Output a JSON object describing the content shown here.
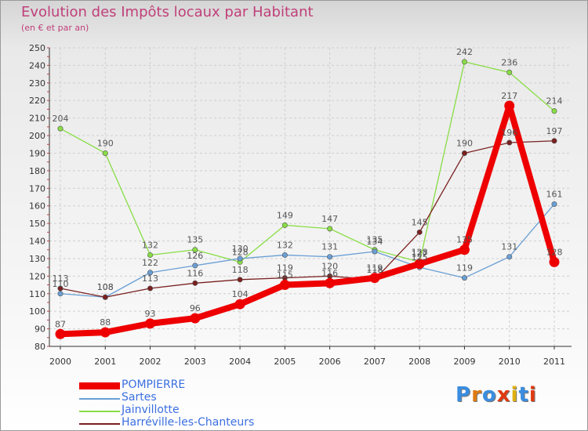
{
  "chart_data": {
    "type": "line",
    "title": "Evolution des Impôts locaux par Habitant",
    "subtitle": "(en € et par an)",
    "xlabel": "",
    "ylabel": "",
    "ylim": [
      80,
      250
    ],
    "yticks": [
      80,
      90,
      100,
      110,
      120,
      130,
      140,
      150,
      160,
      170,
      180,
      190,
      200,
      210,
      220,
      230,
      240,
      250
    ],
    "categories": [
      "2000",
      "2001",
      "2002",
      "2003",
      "2004",
      "2005",
      "2006",
      "2007",
      "2008",
      "2009",
      "2010",
      "2011"
    ],
    "grid": true,
    "series": [
      {
        "name": "POMPIERRE",
        "color": "#ee0000",
        "values": [
          87,
          88,
          93,
          96,
          104,
          115,
          116,
          119,
          127,
          135,
          217,
          128
        ],
        "labels": [
          "87",
          "88",
          "93",
          "96",
          "104",
          "115",
          "116",
          "119",
          "127",
          "135",
          "217",
          "128"
        ]
      },
      {
        "name": "Sartes",
        "color": "#6a9fd4",
        "values": [
          110,
          108,
          122,
          126,
          130,
          132,
          131,
          134,
          125,
          119,
          131,
          161
        ],
        "labels": [
          "110",
          "108",
          "122",
          "126",
          "130",
          "132",
          "131",
          "134",
          "125",
          "119",
          "131",
          "161"
        ]
      },
      {
        "name": "Jainvillotte",
        "color": "#88dd44",
        "values": [
          204,
          190,
          132,
          135,
          128,
          149,
          147,
          135,
          128,
          242,
          236,
          214
        ],
        "labels": [
          "204",
          "190",
          "132",
          "135",
          "128",
          "149",
          "147",
          "135",
          "128",
          "242",
          "236",
          "214"
        ]
      },
      {
        "name": "Harréville-les-Chanteurs",
        "color": "#7a2020",
        "values": [
          113,
          108,
          113,
          116,
          118,
          119,
          120,
          118,
          145,
          190,
          196,
          197
        ],
        "labels": [
          "113",
          "108",
          "113",
          "116",
          "118",
          "119",
          "120",
          "118",
          "145",
          "190",
          "196",
          "197"
        ]
      }
    ]
  },
  "logo": {
    "text": "Proxiti",
    "letter_colors": [
      "#3a8de0",
      "#e07a10",
      "#3a8de0",
      "#e03a10",
      "#e0b010",
      "#3a8de0",
      "#e03a10"
    ]
  }
}
